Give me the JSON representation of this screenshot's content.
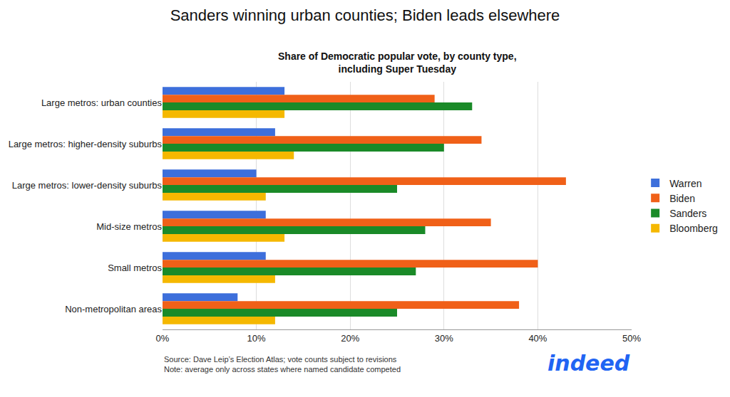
{
  "chart_data": {
    "type": "bar",
    "orientation": "horizontal",
    "title": "Sanders winning urban counties; Biden leads elsewhere",
    "subtitle": "Share of Democratic popular vote, by county type,\nincluding Super Tuesday",
    "categories": [
      "Large metros: urban counties",
      "Large metros: higher-density suburbs",
      "Large metros: lower-density suburbs",
      "Mid-size metros",
      "Small metros",
      "Non-metropolitan areas"
    ],
    "series": [
      {
        "name": "Warren",
        "color": "#3d6fdb",
        "values": [
          13,
          12,
          10,
          11,
          11,
          8
        ]
      },
      {
        "name": "Biden",
        "color": "#f06018",
        "values": [
          29,
          34,
          43,
          35,
          40,
          38
        ]
      },
      {
        "name": "Sanders",
        "color": "#1a8a28",
        "values": [
          33,
          30,
          25,
          28,
          27,
          25
        ]
      },
      {
        "name": "Bloomberg",
        "color": "#f5b800",
        "values": [
          13,
          14,
          11,
          13,
          12,
          12
        ]
      }
    ],
    "xlim": [
      0,
      50
    ],
    "xticks": [
      {
        "value": 0,
        "label": "0%"
      },
      {
        "value": 10,
        "label": "10%"
      },
      {
        "value": 20,
        "label": "20%"
      },
      {
        "value": 30,
        "label": "30%"
      },
      {
        "value": 40,
        "label": "40%"
      },
      {
        "value": 50,
        "label": "50%"
      }
    ],
    "grid": true,
    "legend": "right",
    "annotations": [
      "Source: Dave Leip’s Election Atlas; vote counts subject to revisions\nNote: average only across states where named candidate competed",
      "indeed"
    ]
  }
}
